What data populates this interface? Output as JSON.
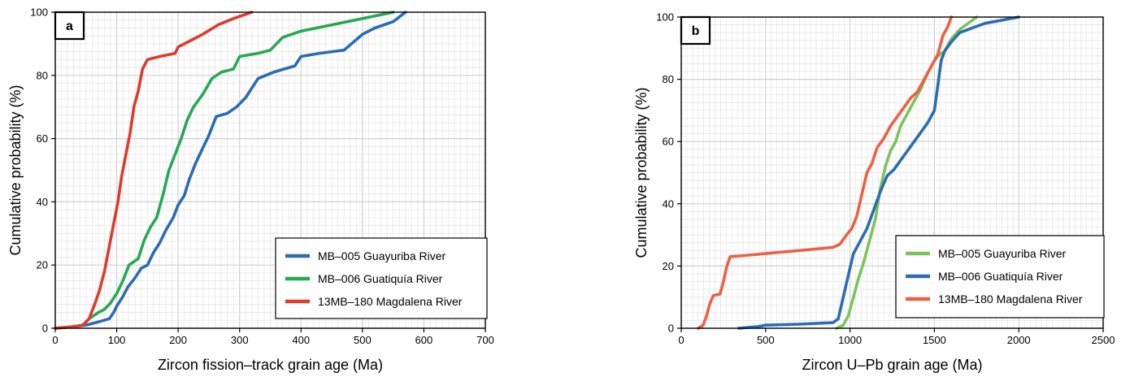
{
  "chart_data": [
    {
      "type": "line",
      "panel_label": "a",
      "xlabel": "Zircon fission–track grain age (Ma)",
      "ylabel": "Cumulative probability (%)",
      "xlim": [
        0,
        700
      ],
      "ylim": [
        0,
        100
      ],
      "x_ticks": [
        "0",
        "100",
        "200",
        "300",
        "400",
        "500",
        "600",
        "700"
      ],
      "y_ticks": [
        "0",
        "20",
        "40",
        "60",
        "80",
        "100"
      ],
      "grid": true,
      "legend_position": "bottom-right",
      "series": [
        {
          "name": "MB–005 Guayuriba River",
          "color": "#2b6cb4",
          "points": [
            [
              0,
              0
            ],
            [
              30,
              0.5
            ],
            [
              50,
              1
            ],
            [
              70,
              2
            ],
            [
              88,
              3
            ],
            [
              95,
              5
            ],
            [
              100,
              7
            ],
            [
              110,
              10
            ],
            [
              118,
              13
            ],
            [
              130,
              16
            ],
            [
              140,
              19
            ],
            [
              150,
              20
            ],
            [
              160,
              24
            ],
            [
              170,
              27
            ],
            [
              180,
              31
            ],
            [
              192,
              35
            ],
            [
              200,
              39
            ],
            [
              210,
              42
            ],
            [
              218,
              47
            ],
            [
              228,
              52
            ],
            [
              240,
              57
            ],
            [
              250,
              61
            ],
            [
              262,
              67
            ],
            [
              280,
              68
            ],
            [
              295,
              70
            ],
            [
              310,
              73
            ],
            [
              330,
              79
            ],
            [
              355,
              81
            ],
            [
              390,
              83
            ],
            [
              400,
              86
            ],
            [
              430,
              87
            ],
            [
              470,
              88
            ],
            [
              500,
              93
            ],
            [
              520,
              95
            ],
            [
              550,
              97
            ],
            [
              570,
              100
            ]
          ]
        },
        {
          "name": "MB–006 Guatiquía River",
          "color": "#27a954",
          "points": [
            [
              0,
              0
            ],
            [
              30,
              0.5
            ],
            [
              45,
              1
            ],
            [
              55,
              3
            ],
            [
              70,
              5
            ],
            [
              80,
              6
            ],
            [
              90,
              8
            ],
            [
              100,
              11
            ],
            [
              110,
              15
            ],
            [
              120,
              20
            ],
            [
              135,
              22
            ],
            [
              145,
              28
            ],
            [
              155,
              32
            ],
            [
              165,
              35
            ],
            [
              175,
              42
            ],
            [
              185,
              50
            ],
            [
              195,
              55
            ],
            [
              205,
              60
            ],
            [
              215,
              66
            ],
            [
              225,
              70
            ],
            [
              240,
              74
            ],
            [
              255,
              79
            ],
            [
              270,
              81
            ],
            [
              290,
              82
            ],
            [
              300,
              86
            ],
            [
              330,
              87
            ],
            [
              350,
              88
            ],
            [
              370,
              92
            ],
            [
              400,
              94
            ],
            [
              450,
              96
            ],
            [
              500,
              98
            ],
            [
              550,
              100
            ]
          ]
        },
        {
          "name": "13MB–180 Magdalena River",
          "color": "#e03a2e",
          "points": [
            [
              0,
              0
            ],
            [
              30,
              0.5
            ],
            [
              45,
              1
            ],
            [
              55,
              3
            ],
            [
              65,
              8
            ],
            [
              72,
              12
            ],
            [
              80,
              18
            ],
            [
              88,
              26
            ],
            [
              95,
              33
            ],
            [
              102,
              40
            ],
            [
              108,
              48
            ],
            [
              115,
              55
            ],
            [
              122,
              62
            ],
            [
              128,
              70
            ],
            [
              135,
              75
            ],
            [
              142,
              82
            ],
            [
              150,
              85
            ],
            [
              170,
              86
            ],
            [
              195,
              87
            ],
            [
              200,
              89
            ],
            [
              220,
              91
            ],
            [
              240,
              93
            ],
            [
              265,
              96
            ],
            [
              290,
              98
            ],
            [
              320,
              100
            ]
          ]
        }
      ]
    },
    {
      "type": "line",
      "panel_label": "b",
      "xlabel": "Zircon U–Pb grain age (Ma)",
      "ylabel": "Cumulative probability (%)",
      "xlim": [
        0,
        2500
      ],
      "ylim": [
        0,
        100
      ],
      "x_ticks": [
        "0",
        "500",
        "1000",
        "1500",
        "2000",
        "2500"
      ],
      "y_ticks": [
        "0",
        "20",
        "40",
        "60",
        "80",
        "100"
      ],
      "grid": true,
      "legend_position": "bottom-right",
      "series": [
        {
          "name": "MB–005 Guayuriba River",
          "color": "#7cc45c",
          "points": [
            [
              920,
              0
            ],
            [
              960,
              1
            ],
            [
              990,
              4
            ],
            [
              1020,
              10
            ],
            [
              1050,
              16
            ],
            [
              1080,
              21
            ],
            [
              1110,
              27
            ],
            [
              1150,
              35
            ],
            [
              1180,
              45
            ],
            [
              1210,
              52
            ],
            [
              1240,
              57
            ],
            [
              1270,
              60
            ],
            [
              1300,
              65
            ],
            [
              1340,
              69
            ],
            [
              1380,
              73
            ],
            [
              1420,
              77
            ],
            [
              1460,
              82
            ],
            [
              1500,
              86
            ],
            [
              1530,
              88
            ],
            [
              1560,
              89
            ],
            [
              1600,
              93
            ],
            [
              1650,
              96
            ],
            [
              1700,
              98
            ],
            [
              1750,
              100
            ]
          ]
        },
        {
          "name": "MB–006 Guatiquía River",
          "color": "#2b6cb4",
          "points": [
            [
              340,
              0
            ],
            [
              450,
              0.5
            ],
            [
              500,
              1
            ],
            [
              700,
              1.3
            ],
            [
              900,
              1.8
            ],
            [
              930,
              3
            ],
            [
              960,
              10
            ],
            [
              990,
              17
            ],
            [
              1020,
              24
            ],
            [
              1060,
              28
            ],
            [
              1100,
              32
            ],
            [
              1140,
              38
            ],
            [
              1180,
              44
            ],
            [
              1220,
              49
            ],
            [
              1260,
              51
            ],
            [
              1300,
              54
            ],
            [
              1340,
              57
            ],
            [
              1380,
              60
            ],
            [
              1420,
              63
            ],
            [
              1460,
              66
            ],
            [
              1500,
              70
            ],
            [
              1520,
              78
            ],
            [
              1540,
              86
            ],
            [
              1560,
              89
            ],
            [
              1600,
              92
            ],
            [
              1650,
              95
            ],
            [
              1700,
              96
            ],
            [
              1800,
              98
            ],
            [
              2000,
              100
            ]
          ]
        },
        {
          "name": "13MB–180 Magdalena River",
          "color": "#ee6044",
          "points": [
            [
              100,
              0
            ],
            [
              130,
              1
            ],
            [
              150,
              4
            ],
            [
              170,
              8
            ],
            [
              190,
              10.5
            ],
            [
              230,
              11
            ],
            [
              250,
              15
            ],
            [
              270,
              20
            ],
            [
              290,
              23
            ],
            [
              400,
              23.5
            ],
            [
              500,
              24
            ],
            [
              700,
              25
            ],
            [
              900,
              26
            ],
            [
              940,
              27
            ],
            [
              980,
              30
            ],
            [
              1010,
              32
            ],
            [
              1040,
              36
            ],
            [
              1070,
              43
            ],
            [
              1100,
              50
            ],
            [
              1130,
              53
            ],
            [
              1160,
              58
            ],
            [
              1200,
              61
            ],
            [
              1240,
              65
            ],
            [
              1280,
              68
            ],
            [
              1320,
              71
            ],
            [
              1360,
              74
            ],
            [
              1400,
              76
            ],
            [
              1440,
              80
            ],
            [
              1480,
              84
            ],
            [
              1520,
              88
            ],
            [
              1550,
              94
            ],
            [
              1580,
              97
            ],
            [
              1600,
              100
            ]
          ]
        }
      ]
    }
  ]
}
